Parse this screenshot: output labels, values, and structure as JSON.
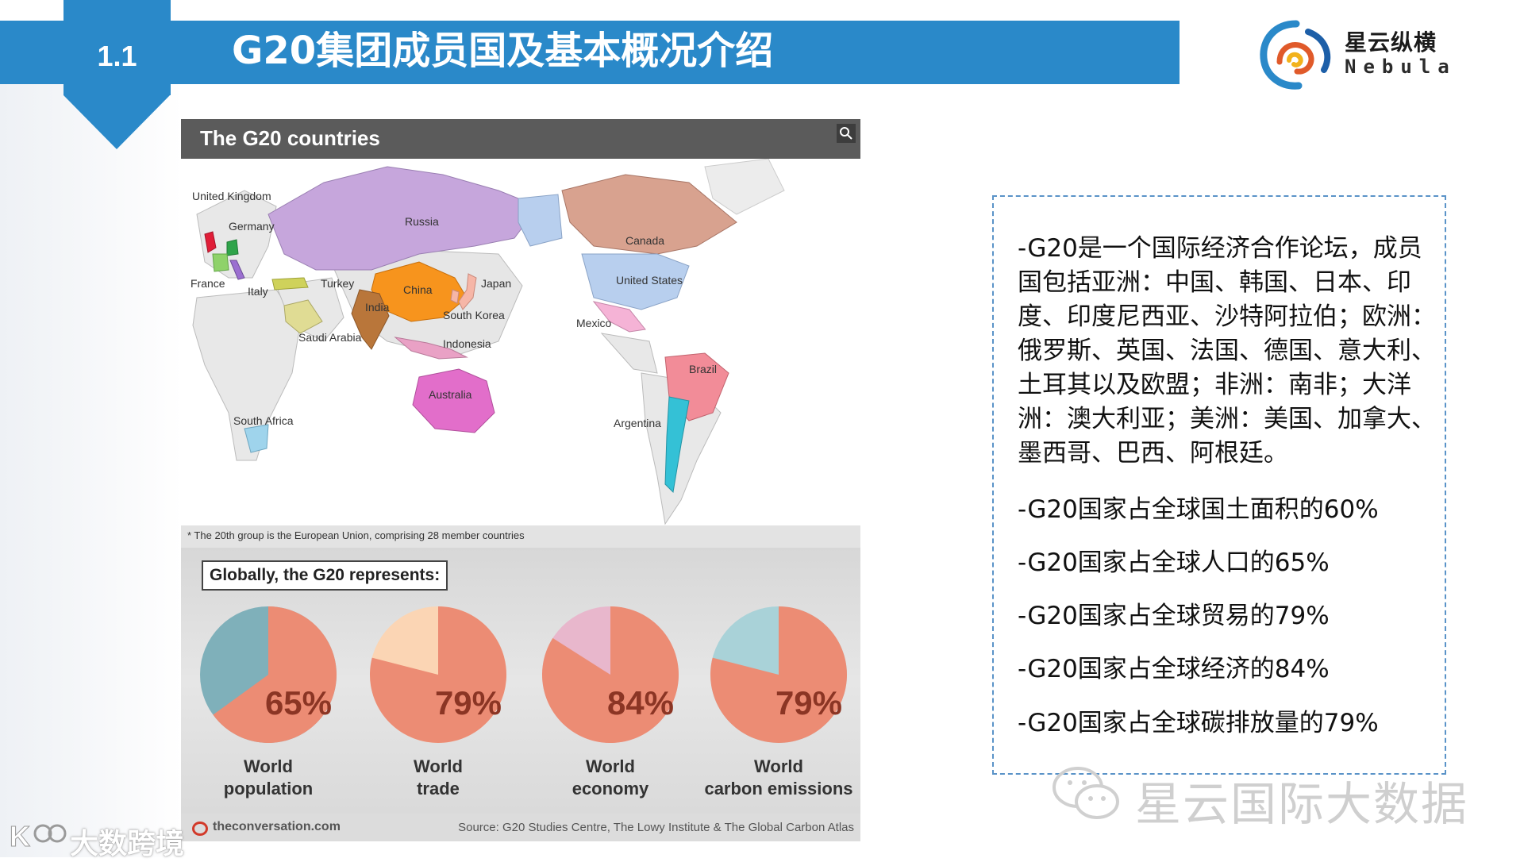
{
  "header": {
    "section_number": "1.1",
    "title": "G20集团成员国及基本概况介绍"
  },
  "logo": {
    "name": "星云纵横",
    "subtitle": "Nebula"
  },
  "infographic": {
    "title": "The G20 countries",
    "map_labels": {
      "uk": "United Kingdom",
      "germany": "Germany",
      "france": "France",
      "italy": "Italy",
      "russia": "Russia",
      "turkey": "Turkey",
      "saudi_arabia": "Saudi Arabia",
      "china": "China",
      "india": "India",
      "japan": "Japan",
      "south_korea": "South Korea",
      "indonesia": "Indonesia",
      "australia": "Australia",
      "south_africa": "South Africa",
      "canada": "Canada",
      "united_states": "United States",
      "mexico": "Mexico",
      "brazil": "Brazil",
      "argentina": "Argentina"
    },
    "footnote": "* The 20th group is the European Union, comprising 28 member countries",
    "represents_label": "Globally, the G20 represents:",
    "stats": [
      {
        "percent": "65%",
        "label_line1": "World",
        "label_line2": "population",
        "value": 65,
        "rest_color": "#7fb0ba"
      },
      {
        "percent": "79%",
        "label_line1": "World",
        "label_line2": "trade",
        "value": 79,
        "rest_color": "#fbd5b4"
      },
      {
        "percent": "84%",
        "label_line1": "World",
        "label_line2": "economy",
        "value": 84,
        "rest_color": "#e8b7cc"
      },
      {
        "percent": "79%",
        "label_line1": "World",
        "label_line2": "carbon emissions",
        "value": 79,
        "rest_color": "#a9d2d8"
      }
    ],
    "source_site": "theconversation.com",
    "source_text": "Source: G20 Studies Centre, The Lowy Institute & The Global Carbon Atlas",
    "colors": {
      "pie_main": "#ec8c74",
      "header": "#5b5b5b"
    }
  },
  "description": {
    "intro": "-G20是一个国际经济合作论坛，成员国包括亚洲：中国、韩国、日本、印度、印度尼西亚、沙特阿拉伯；欧洲：俄罗斯、英国、法国、德国、意大利、土耳其以及欧盟；非洲：南非；大洋洲：澳大利亚；美洲：美国、加拿大、墨西哥、巴西、阿根廷。",
    "facts": [
      "-G20国家占全球国土面积的60%",
      "-G20国家占全球人口的65%",
      "-G20国家占全球贸易的79%",
      "-G20国家占全球经济的84%",
      "-G20国家占全球碳排放量的79%"
    ]
  },
  "watermarks": {
    "right": "星云国际大数据",
    "left": "大数跨境"
  },
  "theme": {
    "accent": "#2a89c9"
  }
}
